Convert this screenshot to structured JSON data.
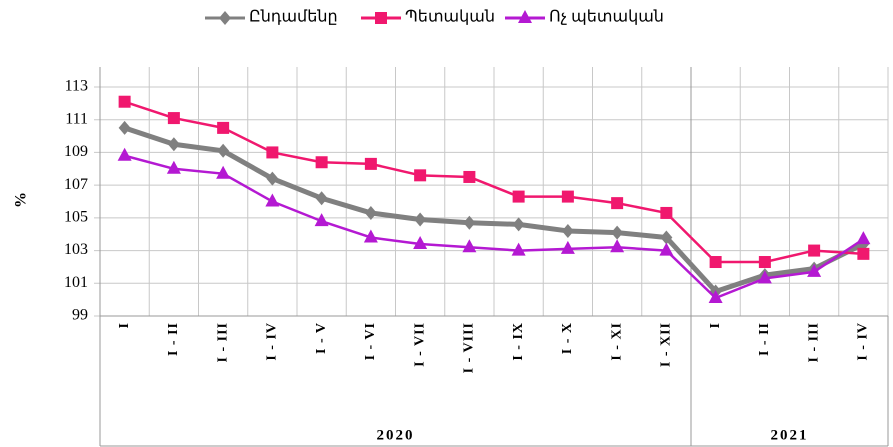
{
  "chart_data": {
    "type": "line",
    "y_label": "%",
    "category_groups": [
      {
        "label": "2020",
        "categories": [
          "I",
          "I - II",
          "I - III",
          "I - IV",
          "I - V",
          "I - VI",
          "I - VII",
          "I - VIII",
          "I - IX",
          "I - X",
          "I - XI",
          "I - XII"
        ]
      },
      {
        "label": "2021",
        "categories": [
          "I",
          "I - II",
          "I - III",
          "I - IV"
        ]
      }
    ],
    "series": [
      {
        "name": "Ընդամենը",
        "color": "#808080",
        "marker": "diamond",
        "values": [
          110.5,
          109.5,
          109.1,
          107.4,
          106.2,
          105.3,
          104.9,
          104.7,
          104.6,
          104.2,
          104.1,
          103.8,
          100.5,
          101.5,
          101.9,
          103.4
        ]
      },
      {
        "name": "Պետական",
        "color": "#f0186e",
        "marker": "square",
        "values": [
          112.1,
          111.1,
          110.5,
          109.0,
          108.4,
          108.3,
          107.6,
          107.5,
          106.3,
          106.3,
          105.9,
          105.3,
          102.3,
          102.3,
          103.0,
          102.8
        ]
      },
      {
        "name": "Ոչ պետական",
        "color": "#b419d2",
        "marker": "triangle",
        "values": [
          108.8,
          108.0,
          107.7,
          106.0,
          104.8,
          103.8,
          103.4,
          103.2,
          103.0,
          103.1,
          103.2,
          103.0,
          100.1,
          101.3,
          101.7,
          103.7
        ]
      }
    ],
    "ylim": [
      99,
      113
    ],
    "yticks": [
      99,
      101,
      103,
      105,
      107,
      109,
      111,
      113
    ],
    "grid": true,
    "legend": "top"
  }
}
